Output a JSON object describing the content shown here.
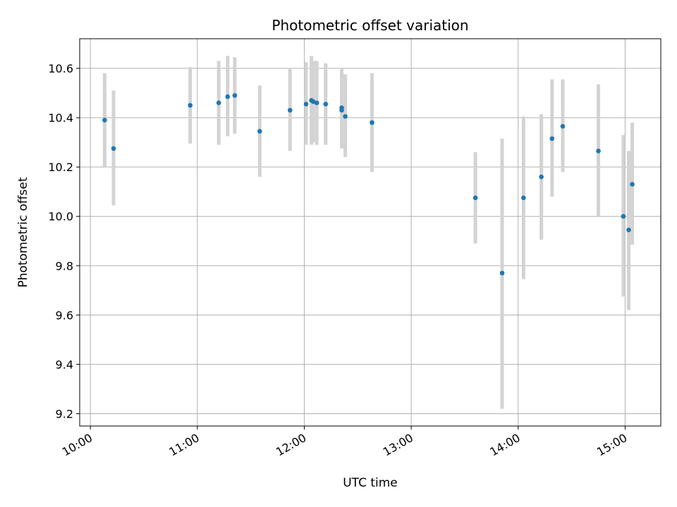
{
  "chart_data": {
    "type": "scatter",
    "title": "Photometric offset variation",
    "xlabel": "UTC time",
    "ylabel": "Photometric offset",
    "x_ticks": [
      "10:00",
      "11:00",
      "12:00",
      "13:00",
      "14:00",
      "15:00"
    ],
    "y_ticks": [
      "9.2",
      "9.4",
      "9.6",
      "9.8",
      "10.0",
      "10.2",
      "10.4",
      "10.6"
    ],
    "xlim": [
      "09:54",
      "15:20"
    ],
    "ylim": [
      9.15,
      10.72
    ],
    "grid": true,
    "marker_color": "#1f77b4",
    "errorbar_color": "#d3d3d3",
    "points": [
      {
        "time": "10:08",
        "value": 10.39,
        "low": 10.2,
        "high": 10.58
      },
      {
        "time": "10:13",
        "value": 10.275,
        "low": 10.045,
        "high": 10.51
      },
      {
        "time": "10:56",
        "value": 10.45,
        "low": 10.295,
        "high": 10.605
      },
      {
        "time": "11:12",
        "value": 10.46,
        "low": 10.29,
        "high": 10.63
      },
      {
        "time": "11:17",
        "value": 10.485,
        "low": 10.325,
        "high": 10.65
      },
      {
        "time": "11:21",
        "value": 10.49,
        "low": 10.335,
        "high": 10.645
      },
      {
        "time": "11:35",
        "value": 10.345,
        "low": 10.16,
        "high": 10.53
      },
      {
        "time": "11:52",
        "value": 10.43,
        "low": 10.265,
        "high": 10.6
      },
      {
        "time": "12:01",
        "value": 10.455,
        "low": 10.29,
        "high": 10.625
      },
      {
        "time": "12:04",
        "value": 10.47,
        "low": 10.29,
        "high": 10.65
      },
      {
        "time": "12:05",
        "value": 10.465,
        "low": 10.3,
        "high": 10.63
      },
      {
        "time": "12:07",
        "value": 10.46,
        "low": 10.29,
        "high": 10.63
      },
      {
        "time": "12:12",
        "value": 10.455,
        "low": 10.29,
        "high": 10.62
      },
      {
        "time": "12:21",
        "value": 10.43,
        "low": 10.275,
        "high": 10.6
      },
      {
        "time": "12:21",
        "value": 10.44,
        "low": 10.275,
        "high": 10.6
      },
      {
        "time": "12:23",
        "value": 10.405,
        "low": 10.24,
        "high": 10.575
      },
      {
        "time": "12:38",
        "value": 10.38,
        "low": 10.18,
        "high": 10.58
      },
      {
        "time": "13:36",
        "value": 10.075,
        "low": 9.89,
        "high": 10.26
      },
      {
        "time": "13:51",
        "value": 9.77,
        "low": 9.22,
        "high": 10.315
      },
      {
        "time": "14:03",
        "value": 10.075,
        "low": 9.745,
        "high": 10.405
      },
      {
        "time": "14:13",
        "value": 10.16,
        "low": 9.905,
        "high": 10.415
      },
      {
        "time": "14:19",
        "value": 10.315,
        "low": 10.08,
        "high": 10.555
      },
      {
        "time": "14:25",
        "value": 10.365,
        "low": 10.18,
        "high": 10.555
      },
      {
        "time": "14:45",
        "value": 10.265,
        "low": 10.0,
        "high": 10.535
      },
      {
        "time": "14:59",
        "value": 10.0,
        "low": 9.675,
        "high": 10.33
      },
      {
        "time": "15:02",
        "value": 9.945,
        "low": 9.62,
        "high": 10.265
      },
      {
        "time": "15:04",
        "value": 10.13,
        "low": 9.885,
        "high": 10.38
      }
    ]
  }
}
